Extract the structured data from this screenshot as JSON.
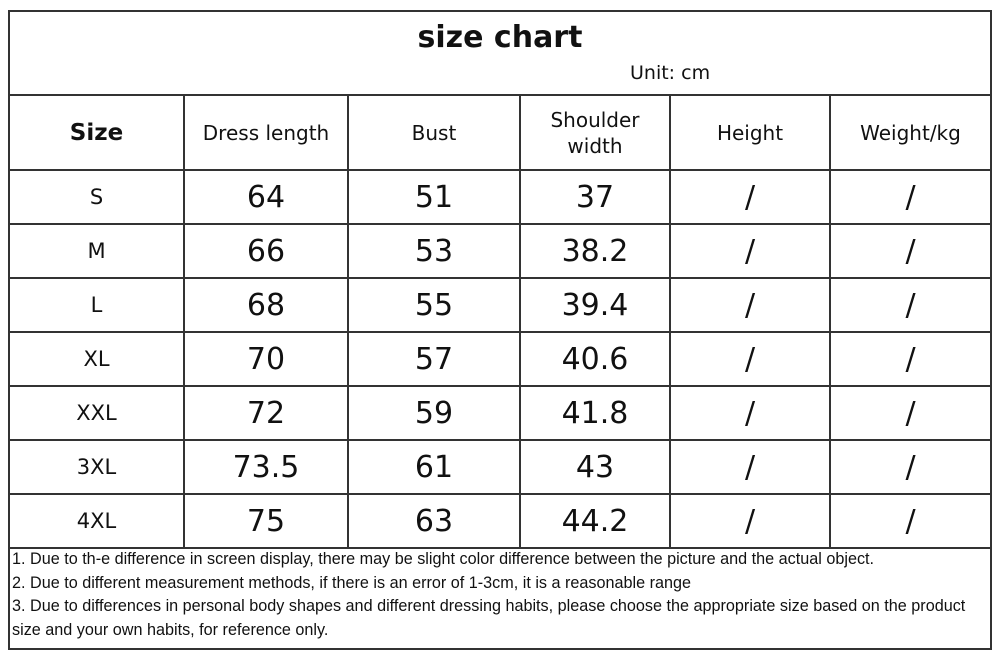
{
  "title": "size chart",
  "unit": "Unit: cm",
  "headers": {
    "size": "Size",
    "dress_length": "Dress length",
    "bust": "Bust",
    "shoulder_width": "Shoulder width",
    "height": "Height",
    "weight": "Weight/kg"
  },
  "rows": [
    {
      "size": "S",
      "dress_length": "64",
      "bust": "51",
      "shoulder_width": "37",
      "height": "/",
      "weight": "/"
    },
    {
      "size": "M",
      "dress_length": "66",
      "bust": "53",
      "shoulder_width": "38.2",
      "height": "/",
      "weight": "/"
    },
    {
      "size": "L",
      "dress_length": "68",
      "bust": "55",
      "shoulder_width": "39.4",
      "height": "/",
      "weight": "/"
    },
    {
      "size": "XL",
      "dress_length": "70",
      "bust": "57",
      "shoulder_width": "40.6",
      "height": "/",
      "weight": "/"
    },
    {
      "size": "XXL",
      "dress_length": "72",
      "bust": "59",
      "shoulder_width": "41.8",
      "height": "/",
      "weight": "/"
    },
    {
      "size": "3XL",
      "dress_length": "73.5",
      "bust": "61",
      "shoulder_width": "43",
      "height": "/",
      "weight": "/"
    },
    {
      "size": "4XL",
      "dress_length": "75",
      "bust": "63",
      "shoulder_width": "44.2",
      "height": "/",
      "weight": "/"
    }
  ],
  "notes": [
    "1. Due to th-e difference in screen display, there may be slight color difference between the picture and the actual object.",
    "2. Due to different measurement methods, if there is an error of 1-3cm, it is a reasonable range",
    "3. Due to differences in personal body shapes and different dressing habits, please choose the appropriate size based on the product size and your own habits, for reference only."
  ]
}
